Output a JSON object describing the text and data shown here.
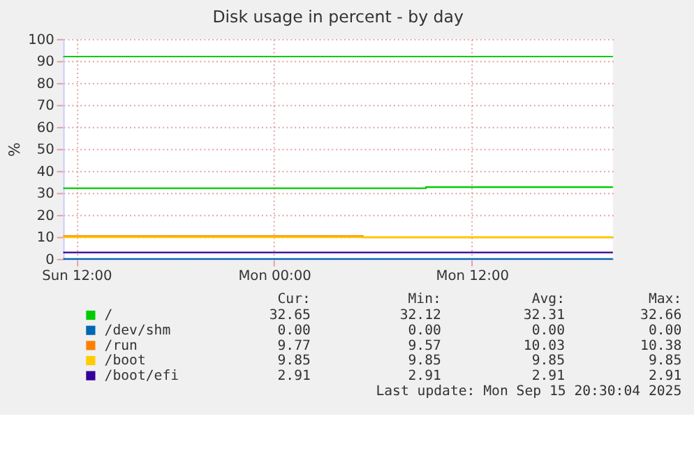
{
  "chart_data": {
    "type": "step",
    "title": "Disk usage in percent - by day",
    "ylabel": "%",
    "xlim": [
      "2025-09-14T11:12",
      "2025-09-15T20:34"
    ],
    "xticks": [
      {
        "value": "2025-09-14T12:00",
        "label": "Sun 12:00"
      },
      {
        "value": "2025-09-15T00:00",
        "label": "Mon 00:00"
      },
      {
        "value": "2025-09-15T12:00",
        "label": "Mon 12:00"
      }
    ],
    "ylim": [
      0,
      100
    ],
    "yticks": [
      0,
      10,
      20,
      30,
      40,
      50,
      60,
      70,
      80,
      90,
      100
    ],
    "grid": true,
    "legend": "bottom",
    "series": [
      {
        "name": "/",
        "color": "#00cc00",
        "x": [
          "2025-09-14T11:12",
          "2025-09-15T09:13",
          "2025-09-15T20:34"
        ],
        "values": [
          32.12,
          32.65,
          32.65
        ]
      },
      {
        "name": "/dev/shm",
        "color": "#0066b3",
        "x": [
          "2025-09-14T11:12",
          "2025-09-15T20:34"
        ],
        "values": [
          0.0,
          0.0
        ]
      },
      {
        "name": "/run",
        "color": "#ff8000",
        "x": [
          "2025-09-14T11:12",
          "2025-09-15T05:24",
          "2025-09-15T20:34"
        ],
        "values": [
          10.38,
          9.77,
          9.77
        ]
      },
      {
        "name": "/boot",
        "color": "#ffcc00",
        "x": [
          "2025-09-14T11:12",
          "2025-09-15T20:34"
        ],
        "values": [
          9.85,
          9.85
        ]
      },
      {
        "name": "/boot/efi",
        "color": "#330099",
        "x": [
          "2025-09-14T11:12",
          "2025-09-15T20:34"
        ],
        "values": [
          2.91,
          2.91
        ]
      }
    ],
    "ref_lines": [
      {
        "axis": "y",
        "value": 92,
        "color": "#00cc00"
      }
    ],
    "annotations": [
      "Cur:",
      "Min:",
      "Avg:",
      "Max:",
      "32.65",
      "32.12",
      "32.31",
      "32.66",
      "0.00",
      "0.00",
      "0.00",
      "0.00",
      "9.77",
      "9.57",
      "10.03",
      "10.38",
      "9.85",
      "9.85",
      "9.85",
      "9.85",
      "2.91",
      "2.91",
      "2.91",
      "2.91",
      "Last update: Mon Sep 15 20:30:04 2025"
    ]
  }
}
